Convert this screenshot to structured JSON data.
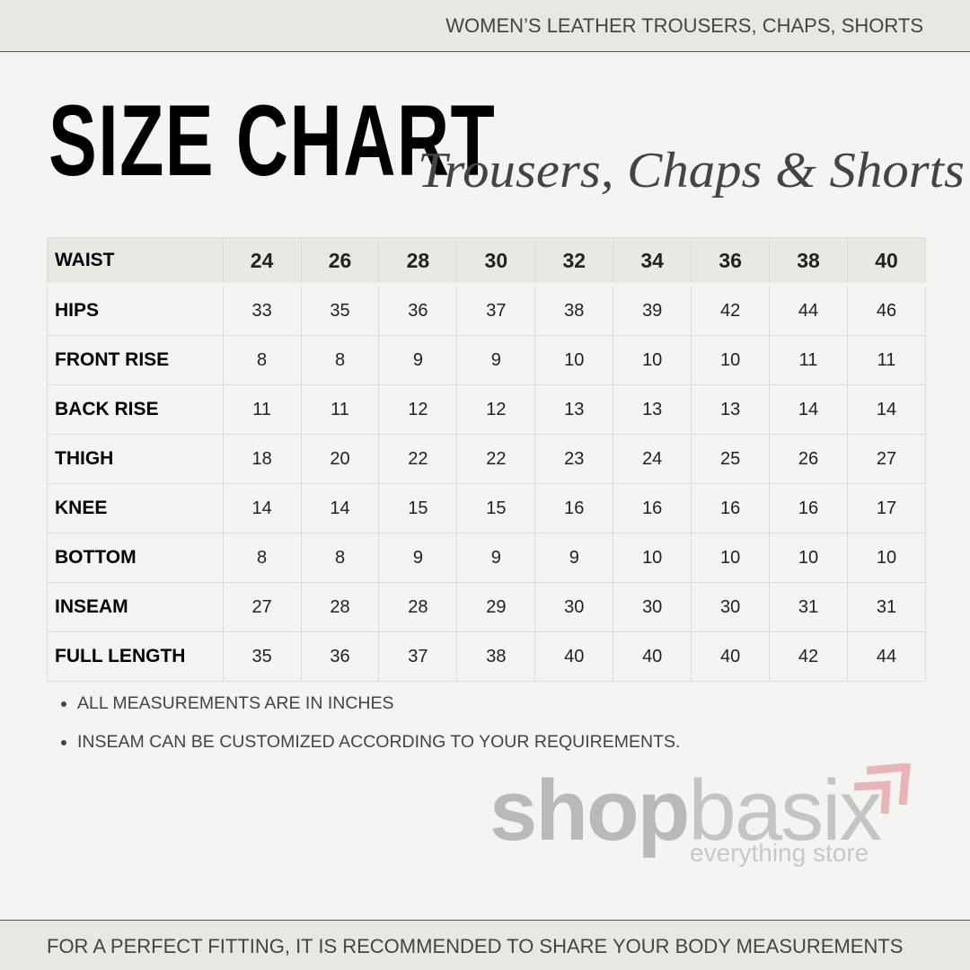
{
  "header": {
    "title": "WOMEN’S LEATHER TROUSERS, CHAPS, SHORTS"
  },
  "heading": {
    "main": "SIZE CHART",
    "script": "Trousers, Chaps & Shorts"
  },
  "table": {
    "header": {
      "label": "WAIST",
      "cells": [
        24,
        26,
        28,
        30,
        32,
        34,
        36,
        38,
        40
      ]
    },
    "rows": [
      {
        "label": "HIPS",
        "cells": [
          33,
          35,
          36,
          37,
          38,
          39,
          42,
          44,
          46
        ]
      },
      {
        "label": "FRONT RISE",
        "cells": [
          8,
          8,
          9,
          9,
          10,
          10,
          10,
          11,
          11
        ]
      },
      {
        "label": "BACK RISE",
        "cells": [
          11,
          11,
          12,
          12,
          13,
          13,
          13,
          14,
          14
        ]
      },
      {
        "label": "THIGH",
        "cells": [
          18,
          20,
          22,
          22,
          23,
          24,
          25,
          26,
          27
        ]
      },
      {
        "label": "KNEE",
        "cells": [
          14,
          14,
          15,
          15,
          16,
          16,
          16,
          16,
          17
        ]
      },
      {
        "label": "BOTTOM",
        "cells": [
          8,
          8,
          9,
          9,
          9,
          10,
          10,
          10,
          10
        ]
      },
      {
        "label": "INSEAM",
        "cells": [
          27,
          28,
          28,
          29,
          30,
          30,
          30,
          31,
          31
        ]
      },
      {
        "label": "FULL LENGTH",
        "cells": [
          35,
          36,
          37,
          38,
          40,
          40,
          40,
          42,
          44
        ]
      }
    ]
  },
  "notes": [
    "ALL MEASUREMENTS ARE IN INCHES",
    "INSEAM CAN BE CUSTOMIZED ACCORDING TO YOUR REQUIREMENTS."
  ],
  "logo": {
    "bold": "shop",
    "light": "basix",
    "tagline": "everything store"
  },
  "footer": {
    "text": "FOR A PERFECT FITTING, IT IS RECOMMENDED TO SHARE YOUR BODY MEASUREMENTS"
  }
}
